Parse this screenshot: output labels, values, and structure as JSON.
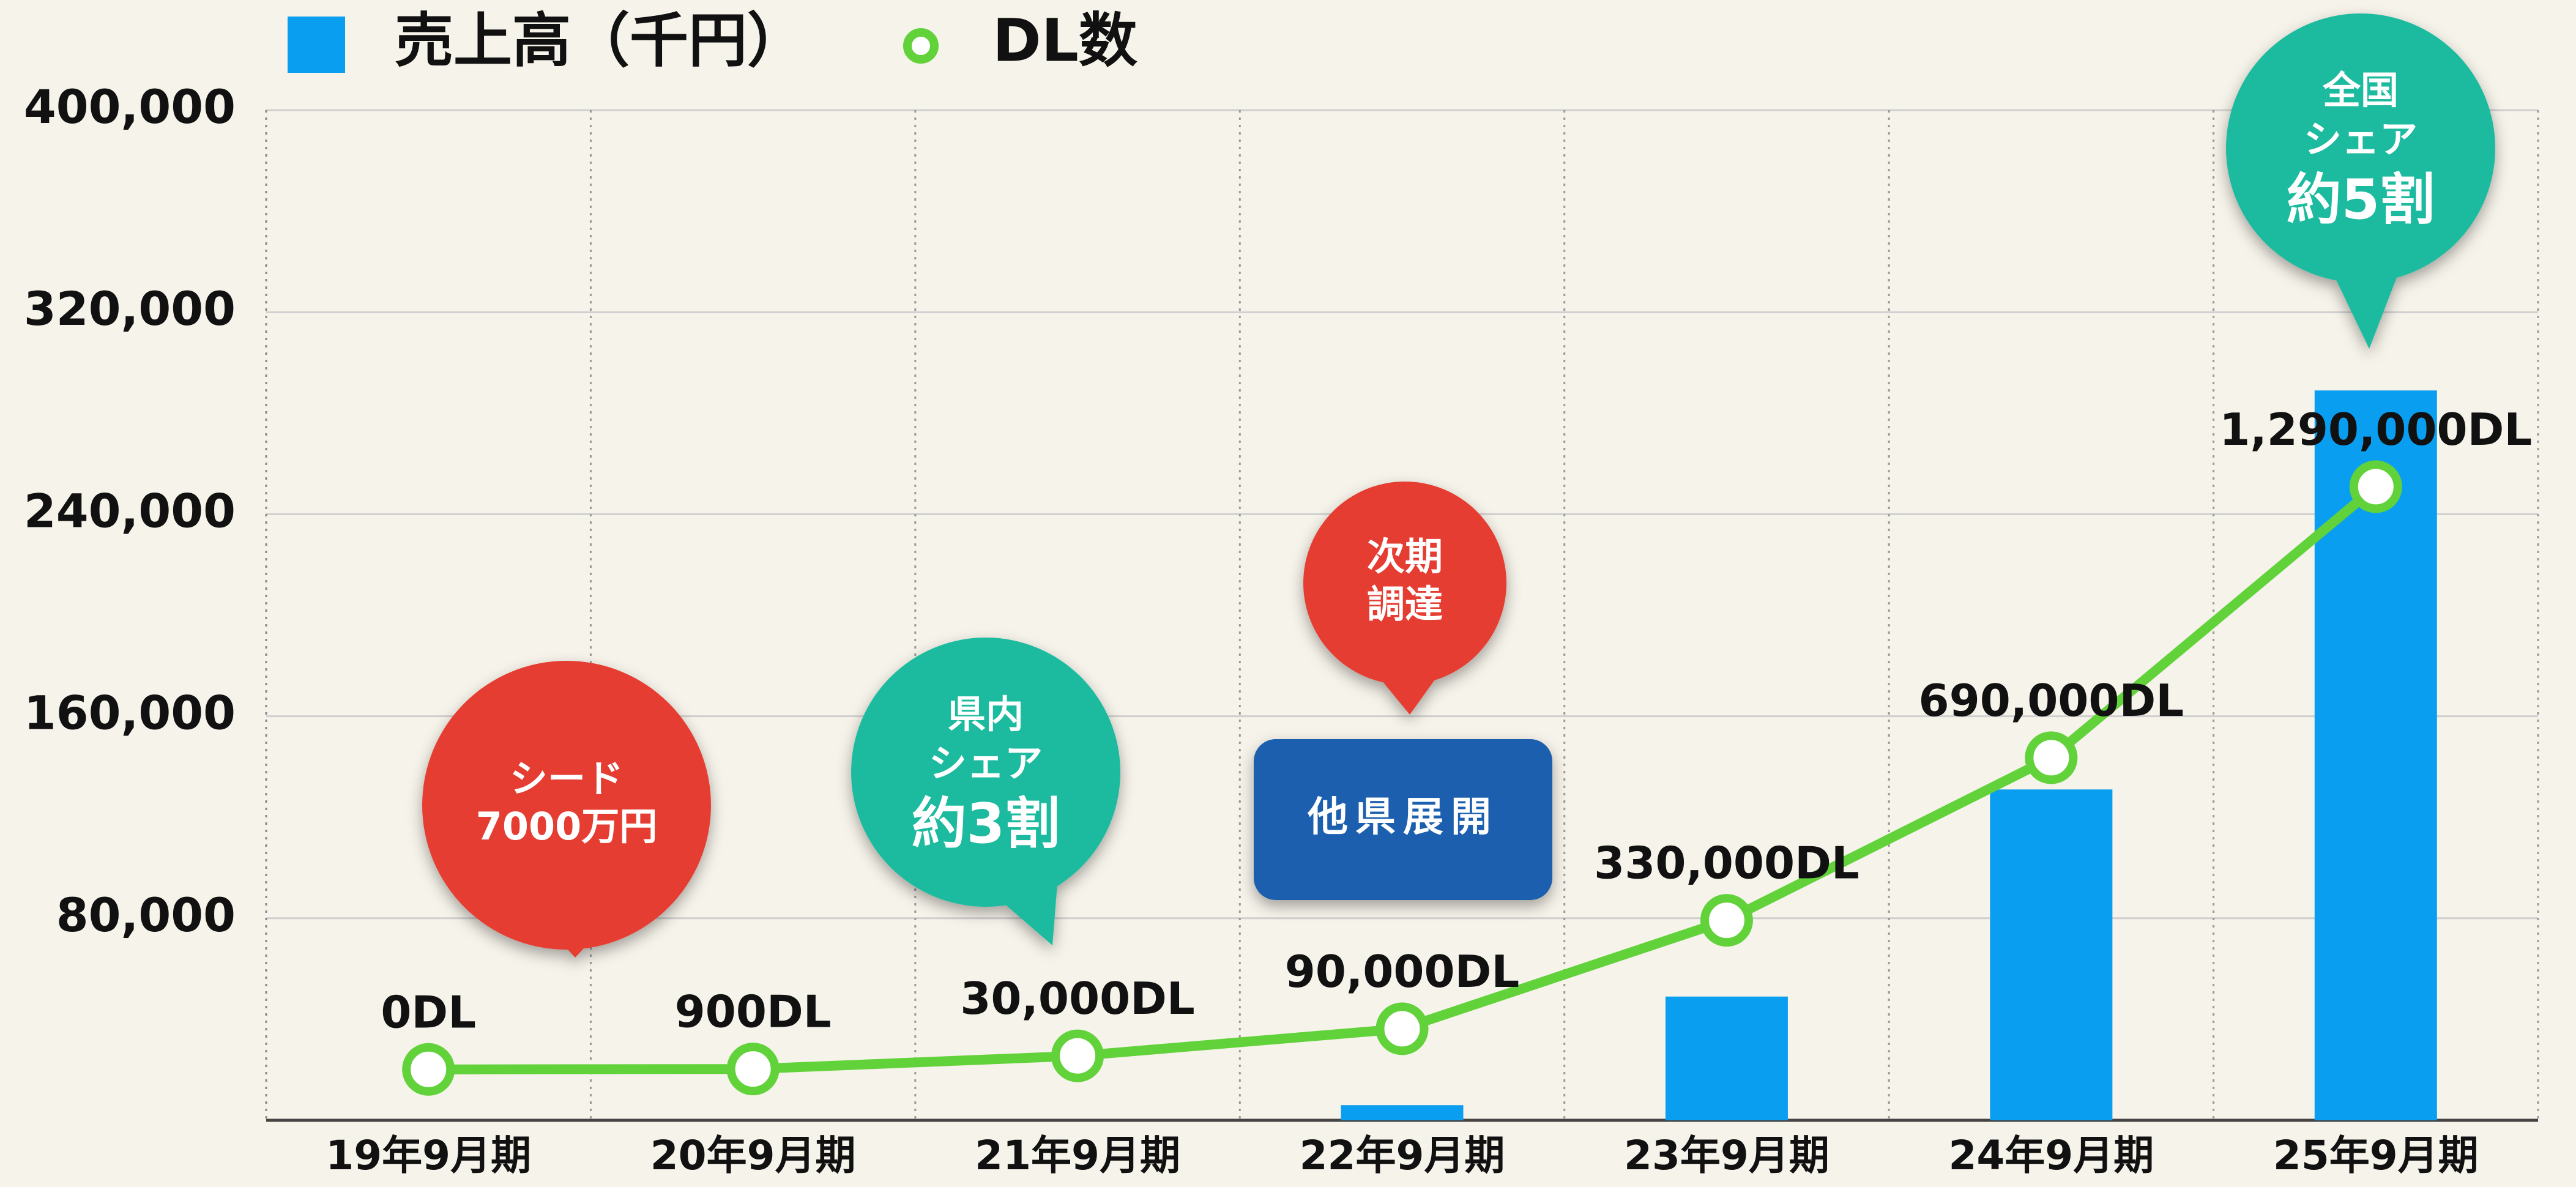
{
  "chart_data": {
    "type": "bar",
    "categories": [
      "19年9月期",
      "20年9月期",
      "21年9月期",
      "22年9月期",
      "23年9月期",
      "24年9月期",
      "25年9月期"
    ],
    "series": [
      {
        "name": "売上高（千円）",
        "type": "bar",
        "color": "#0a9ef0",
        "values": [
          0,
          0,
          0,
          6000,
          49000,
          131000,
          289000
        ]
      },
      {
        "name": "DL数",
        "type": "line",
        "axis": "y2",
        "color": "#62d23a",
        "values": [
          0,
          900,
          30000,
          90000,
          330000,
          690000,
          1290000
        ],
        "value_labels": [
          "0DL",
          "900DL",
          "30,000DL",
          "90,000DL",
          "330,000DL",
          "690,000DL",
          "1,290,000DL"
        ]
      }
    ],
    "ylim": [
      0,
      400000
    ],
    "yticks": [
      {
        "value": 80000,
        "label": "80,000"
      },
      {
        "value": 160000,
        "label": "160,000"
      },
      {
        "value": 240000,
        "label": "240,000"
      },
      {
        "value": 320000,
        "label": "320,000"
      },
      {
        "value": 400000,
        "label": "400,000"
      }
    ],
    "y2lim": [
      -112700,
      2123600
    ],
    "grid": true,
    "legend": "top-left",
    "annotations": [
      {
        "lines": [
          "シード",
          "7000万円"
        ],
        "color": "#e53e30"
      },
      {
        "lines": [
          "県内",
          "シェア",
          "約3割"
        ],
        "color": "#1dbb9f"
      },
      {
        "lines": [
          "次期",
          "調達"
        ],
        "color": "#e53e30"
      },
      {
        "lines": [
          "他県展開"
        ],
        "color": "#1f5fae"
      },
      {
        "lines": [
          "全国",
          "シェア",
          "約5割"
        ],
        "color": "#1dbb9f"
      }
    ]
  }
}
